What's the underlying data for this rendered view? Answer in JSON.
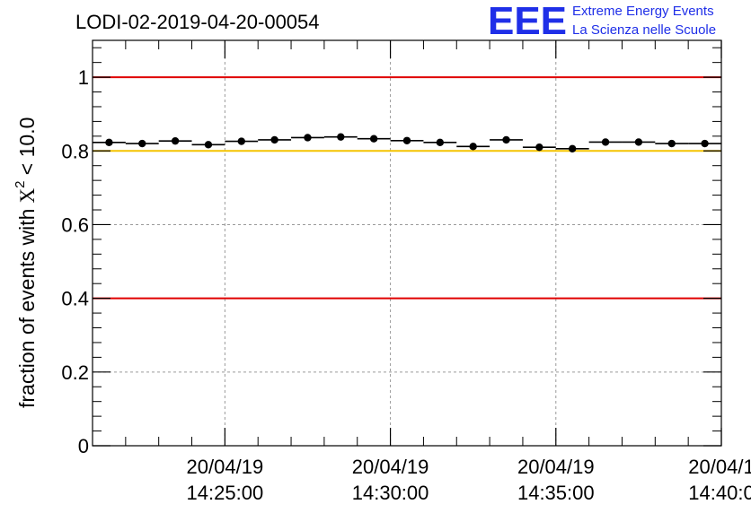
{
  "chart_data": {
    "type": "scatter",
    "title": "LODI-02-2019-04-20-00054",
    "ylabel": "fraction of events with",
    "ylabel_math": {
      "symbol": "X",
      "superscript": "2",
      "rest": " < 10.0"
    },
    "ylim": [
      0,
      1.1
    ],
    "yticks": [
      {
        "value": 0,
        "label": "0"
      },
      {
        "value": 0.2,
        "label": "0.2"
      },
      {
        "value": 0.4,
        "label": "0.4"
      },
      {
        "value": 0.6,
        "label": "0.6"
      },
      {
        "value": 0.8,
        "label": "0.8"
      },
      {
        "value": 1.0,
        "label": "1"
      }
    ],
    "xlim_minutes": [
      21.0,
      40.0
    ],
    "xticks": [
      {
        "value": 25,
        "date": "20/04/19",
        "time": "14:25:00"
      },
      {
        "value": 30,
        "date": "20/04/19",
        "time": "14:30:00"
      },
      {
        "value": 35,
        "date": "20/04/19",
        "time": "14:35:00"
      },
      {
        "value": 40,
        "date": "20/04/1",
        "time": "14:40:0"
      }
    ],
    "grid": true,
    "reference_lines": [
      {
        "name": "upper-limit",
        "value": 1.0,
        "color": "#e00000"
      },
      {
        "name": "target",
        "value": 0.8,
        "color": "#f5c400"
      },
      {
        "name": "lower-limit",
        "value": 0.4,
        "color": "#e00000"
      }
    ],
    "bin_width_minutes": 1.0,
    "series": [
      {
        "name": "fraction",
        "x": [
          21.5,
          22.5,
          23.5,
          24.5,
          25.5,
          26.5,
          27.5,
          28.5,
          29.5,
          30.5,
          31.5,
          32.5,
          33.5,
          34.5,
          35.5,
          36.5,
          37.5,
          38.5,
          39.5
        ],
        "y": [
          0.823,
          0.82,
          0.827,
          0.817,
          0.826,
          0.83,
          0.836,
          0.838,
          0.833,
          0.828,
          0.823,
          0.812,
          0.83,
          0.81,
          0.806,
          0.824,
          0.824,
          0.82,
          0.82
        ]
      }
    ],
    "marker_color": "#000000"
  },
  "logo": {
    "mark": "EEE",
    "line1": "Extreme Energy Events",
    "line2": "La Scienza nelle Scuole",
    "color": "#1f2fe8"
  }
}
